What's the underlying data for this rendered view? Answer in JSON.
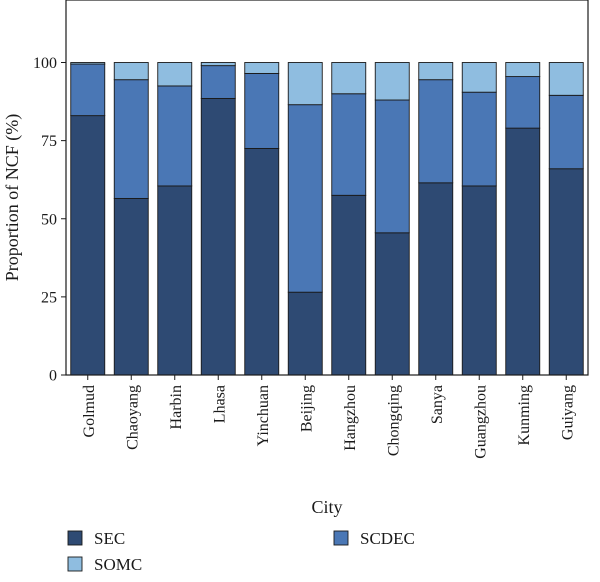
{
  "chart_data": {
    "type": "bar",
    "stacked": true,
    "categories": [
      "Golmud",
      "Chaoyang",
      "Harbin",
      "Lhasa",
      "Yinchuan",
      "Beijing",
      "Hangzhou",
      "Chongqing",
      "Sanya",
      "Guangzhou",
      "Kunming",
      "Guiyang"
    ],
    "series": [
      {
        "name": "SEC",
        "color": "#2e4a73",
        "values": [
          83,
          56.5,
          60.5,
          88.5,
          72.5,
          26.5,
          57.5,
          45.5,
          61.5,
          60.5,
          79,
          66
        ]
      },
      {
        "name": "SCDEC",
        "color": "#4a77b5",
        "values": [
          16.5,
          38,
          32,
          10.5,
          24,
          60,
          32.5,
          42.5,
          33,
          30,
          16.5,
          23.5
        ]
      },
      {
        "name": "SOMC",
        "color": "#8fbde0",
        "values": [
          0.5,
          5.5,
          7.5,
          1,
          3.5,
          13.5,
          10,
          12,
          5.5,
          9.5,
          4.5,
          10.5
        ]
      }
    ],
    "xlabel": "City",
    "ylabel": "Proportion of NCF (%)",
    "ylim": [
      0,
      120
    ],
    "yticks": [
      0,
      25,
      50,
      75,
      100
    ],
    "grid": false,
    "legend_placement": "bottom"
  }
}
